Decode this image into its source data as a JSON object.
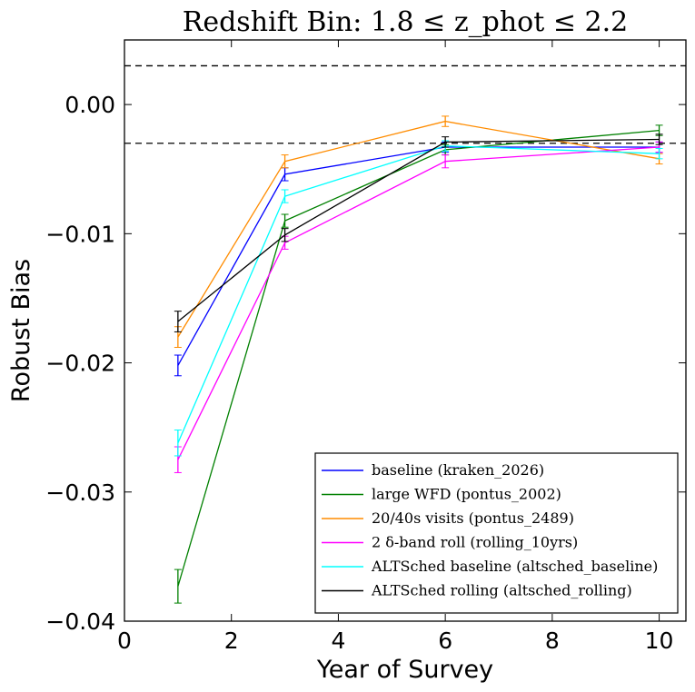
{
  "chart_data": {
    "type": "line",
    "title": "Redshift Bin: 1.8 ≤ z_phot ≤ 2.2",
    "xlabel": "Year of Survey",
    "ylabel": "Robust Bias",
    "xlim": [
      0,
      10.5
    ],
    "ylim": [
      -0.04,
      0.005
    ],
    "xticks": [
      0,
      2,
      4,
      6,
      8,
      10
    ],
    "xtick_labels": [
      "0",
      "2",
      "4",
      "6",
      "8",
      "10"
    ],
    "yticks": [
      -0.04,
      -0.03,
      -0.02,
      -0.01,
      0.0
    ],
    "ytick_labels": [
      "−0.04",
      "−0.03",
      "−0.02",
      "−0.01",
      "0.00"
    ],
    "reference_lines": [
      0.003,
      -0.003
    ],
    "x": [
      1,
      3,
      6,
      10
    ],
    "legend_position": "lower-right",
    "series": [
      {
        "name": "baseline (kraken_2026)",
        "color": "#0000ff",
        "values": [
          -0.0202,
          -0.0054,
          -0.0033,
          -0.0033
        ],
        "errors": [
          0.0008,
          0.0005,
          0.0004,
          0.0004
        ]
      },
      {
        "name": "large WFD (pontus_2002)",
        "color": "#008000",
        "values": [
          -0.0373,
          -0.009,
          -0.0035,
          -0.002
        ],
        "errors": [
          0.0013,
          0.0005,
          0.0004,
          0.0004
        ]
      },
      {
        "name": "20/40s visits (pontus_2489)",
        "color": "#ff8c00",
        "values": [
          -0.018,
          -0.0044,
          -0.0013,
          -0.0042
        ],
        "errors": [
          0.0008,
          0.0005,
          0.0004,
          0.0004
        ]
      },
      {
        "name": "2 δ-band roll (rolling_10yrs)",
        "color": "#ff00ff",
        "values": [
          -0.0275,
          -0.0107,
          -0.0044,
          -0.0033
        ],
        "errors": [
          0.001,
          0.0005,
          0.0005,
          0.0004
        ]
      },
      {
        "name": "ALTSched baseline (altsched_baseline)",
        "color": "#00ffff",
        "values": [
          -0.0262,
          -0.0071,
          -0.0032,
          -0.0038
        ],
        "errors": [
          0.001,
          0.0005,
          0.0004,
          0.0004
        ]
      },
      {
        "name": "ALTSched rolling (altsched_rolling)",
        "color": "#000000",
        "values": [
          -0.0168,
          -0.0101,
          -0.0029,
          -0.0027
        ],
        "errors": [
          0.0008,
          0.0005,
          0.0004,
          0.0004
        ]
      }
    ]
  }
}
